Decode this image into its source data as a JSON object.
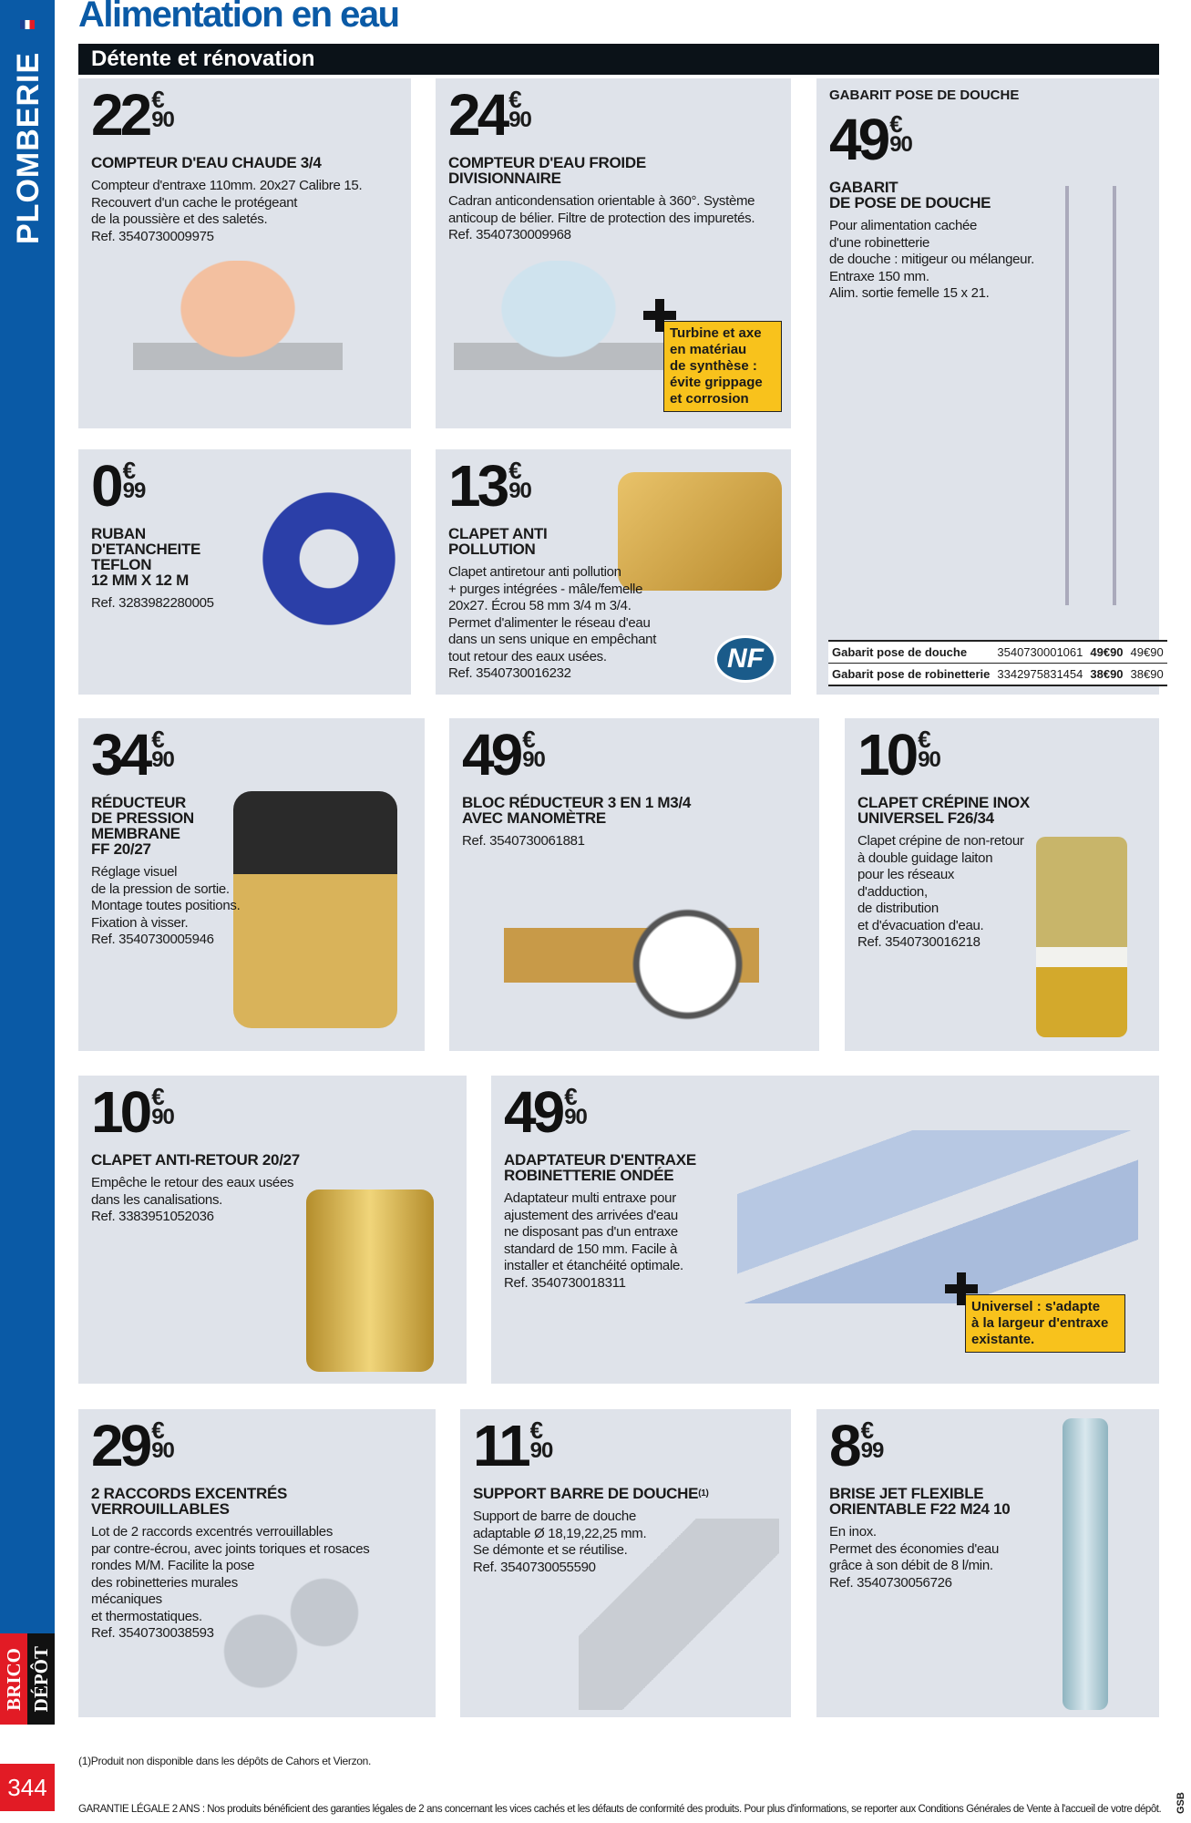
{
  "sidebar": {
    "category": "PLOMBERIE",
    "brand_left": "BRICO",
    "brand_right": "DÉPÔT",
    "page_number": "344"
  },
  "header": {
    "title": "Alimentation en eau",
    "section": "Détente et rénovation"
  },
  "currency": "€",
  "products": [
    {
      "price_int": "22",
      "price_cents": "90",
      "title": "COMPTEUR D'EAU CHAUDE 3/4",
      "desc": "Compteur d'entraxe 110mm. 20x27 Calibre 15.\nRecouvert d'un cache le protégeant\nde la poussière et des saletés.",
      "ref": "Ref. 3540730009975",
      "image": "hot-water-meter"
    },
    {
      "price_int": "24",
      "price_cents": "90",
      "title": "COMPTEUR D'EAU FROIDE\nDIVISIONNAIRE",
      "desc": "Cadran anticondensation orientable à 360°. Système\nanticoup de bélier. Filtre de protection des impuretés.",
      "ref": "Ref. 3540730009968",
      "image": "cold-water-meter",
      "callout": "Turbine et axe\nen matériau\nde synthèse :\névite grippage\net corrosion"
    },
    {
      "top_title": "GABARIT POSE DE DOUCHE",
      "price_int": "49",
      "price_cents": "90",
      "title": "GABARIT\nDE POSE DE DOUCHE",
      "desc": "Pour alimentation cachée\nd'une robinetterie\nde douche : mitigeur ou mélangeur.\nEntraxe 150 mm.\nAlim. sortie femelle 15 x 21.",
      "image": "shower-template",
      "table": [
        {
          "name": "Gabarit pose de douche",
          "ref": "3540730001061",
          "price": "49€90",
          "price2": "49€90"
        },
        {
          "name": "Gabarit pose de robinetterie",
          "ref": "3342975831454",
          "price": "38€90",
          "price2": "38€90"
        }
      ]
    },
    {
      "price_int": "0",
      "price_cents": "99",
      "title": "RUBAN\nD'ETANCHEITE\nTEFLON\n12 MM X 12 M",
      "desc": "",
      "ref": "Ref. 3283982280005",
      "image": "ptfe-tape"
    },
    {
      "price_int": "13",
      "price_cents": "90",
      "title": "CLAPET ANTI\nPOLLUTION",
      "desc": "Clapet antiretour anti pollution\n+ purges intégrées - mâle/femelle\n20x27. Écrou 58 mm 3/4 m 3/4.\nPermet d'alimenter le réseau d'eau\ndans un sens unique en empêchant\ntout retour des eaux usées.",
      "ref": "Ref. 3540730016232",
      "image": "brass-check-valve",
      "badge": "NF"
    },
    {
      "price_int": "34",
      "price_cents": "90",
      "title": "RÉDUCTEUR\nDE PRESSION\nMEMBRANE\nFF 20/27",
      "desc": "Réglage visuel\nde la pression de sortie.\nMontage toutes positions.\nFixation à visser.",
      "ref": "Ref. 3540730005946",
      "image": "pressure-reducer"
    },
    {
      "price_int": "49",
      "price_cents": "90",
      "title": "BLOC RÉDUCTEUR 3 EN 1 M3/4\nAVEC MANOMÈTRE",
      "desc": "",
      "ref": "Ref. 3540730061881",
      "image": "reducer-block-gauge"
    },
    {
      "price_int": "10",
      "price_cents": "90",
      "title": "CLAPET CRÉPINE INOX\nUNIVERSEL F26/34",
      "desc": "Clapet crépine de non-retour\nà double guidage laiton\npour les réseaux\nd'adduction,\nde distribution\net d'évacuation d'eau.",
      "ref": "Ref. 3540730016218",
      "image": "strainer-valve"
    },
    {
      "price_int": "10",
      "price_cents": "90",
      "title": "CLAPET ANTI-RETOUR 20/27",
      "desc": "Empêche le retour des eaux usées\ndans les canalisations.",
      "ref": "Ref. 3383951052036",
      "image": "brass-nonreturn-valve"
    },
    {
      "price_int": "49",
      "price_cents": "90",
      "title": "ADAPTATEUR D'ENTRAXE\nROBINETTERIE ONDÉE",
      "desc": "Adaptateur multi entraxe pour\najustement des arrivées d'eau\nne disposant pas d'un entraxe\nstandard de 150 mm. Facile à\ninstaller et étanchéité optimale.",
      "ref": "Ref. 3540730018311",
      "image": "chrome-adapters",
      "callout": "Universel : s'adapte\nà la largeur d'entraxe\nexistante."
    },
    {
      "price_int": "29",
      "price_cents": "90",
      "title": "2 RACCORDS EXCENTRÉS\nVERROUILLABLES",
      "desc": "Lot de 2 raccords excentrés verrouillables\npar contre-écrou, avec joints toriques et rosaces\nrondes M/M. Facilite la pose\ndes robinetteries murales\nmécaniques\net thermostatiques.",
      "ref": "Ref. 3540730038593",
      "image": "eccentric-fittings"
    },
    {
      "price_int": "11",
      "price_cents": "90",
      "title": "SUPPORT BARRE DE DOUCHE",
      "title_sup": "(1)",
      "desc": "Support de barre de douche\nadaptable Ø 18,19,22,25 mm.\nSe démonte et se réutilise.",
      "ref": "Ref. 3540730055590",
      "image": "shower-bar-support"
    },
    {
      "price_int": "8",
      "price_cents": "99",
      "title": "BRISE JET FLEXIBLE\nORIENTABLE F22 M24 10",
      "desc": "En inox.\nPermet des économies d'eau\ngrâce à son débit de 8 l/min.",
      "ref": "Ref. 3540730056726",
      "image": "flexible-jet-breaker"
    }
  ],
  "footer": {
    "footnote": "(1)Produit non disponible dans les dépôts de Cahors et Vierzon.",
    "warranty": "GARANTIE LÉGALE 2 ANS : Nos produits bénéficient des garanties légales de 2 ans concernant les vices cachés et les défauts de conformité des produits. Pour plus d'informations, se reporter aux Conditions Générales de Vente à l'accueil de votre dépôt.",
    "code": "GSB"
  },
  "colors": {
    "brand_blue": "#0a5aa6",
    "brand_red": "#e21b25",
    "card_bg": "#dfe3ea",
    "callout_yellow": "#f8c21c",
    "section_bar": "#0b1218"
  }
}
